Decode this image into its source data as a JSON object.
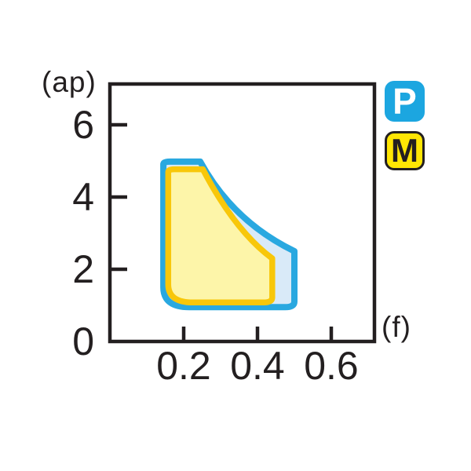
{
  "chart_data": {
    "type": "area",
    "title": "",
    "xlabel": "(f)",
    "ylabel": "(ap)",
    "x_ticks": [
      0.2,
      0.4,
      0.6
    ],
    "y_ticks": [
      6,
      4,
      2
    ],
    "x_tick_labels": [
      "0.2",
      "0.4",
      "0.6"
    ],
    "y_tick_labels": [
      "6",
      "4",
      "2",
      "0"
    ],
    "xlim": [
      0,
      0.72
    ],
    "ylim": [
      0,
      7.1
    ],
    "grid": false,
    "legend_position": "outside-top-right",
    "axis_color": "#231f20",
    "regions": [
      {
        "name": "P",
        "f_range": [
          0.15,
          0.5
        ],
        "ap_range": [
          1,
          5
        ],
        "fill": "#d9eaf8",
        "stroke": "#29a8e0",
        "stroke_width": 8,
        "path": [
          [
            "M",
            0.163,
            4.98
          ],
          [
            "L",
            0.245,
            4.98
          ],
          [
            "Q",
            0.333,
            3.33,
            0.5,
            2.5
          ],
          [
            "L",
            0.5,
            1.1
          ],
          [
            "Q",
            0.5,
            0.95,
            0.475,
            0.95
          ],
          [
            "L",
            0.215,
            0.95
          ],
          [
            "Q",
            0.145,
            0.95,
            0.145,
            1.5
          ],
          [
            "L",
            0.145,
            4.9
          ],
          [
            "Q",
            0.145,
            4.98,
            0.163,
            4.98
          ],
          [
            "Z"
          ]
        ]
      },
      {
        "name": "M",
        "f_range": [
          0.16,
          0.44
        ],
        "ap_range": [
          1.1,
          4.8
        ],
        "fill": "#fdf5a9",
        "stroke": "#f8c70a",
        "stroke_width": 7.5,
        "path": [
          [
            "M",
            0.175,
            4.77
          ],
          [
            "L",
            0.252,
            4.77
          ],
          [
            "Q",
            0.34,
            3.05,
            0.44,
            2.3
          ],
          [
            "L",
            0.44,
            1.22
          ],
          [
            "Q",
            0.44,
            1.08,
            0.417,
            1.08
          ],
          [
            "L",
            0.225,
            1.08
          ],
          [
            "Q",
            0.158,
            1.08,
            0.158,
            1.58
          ],
          [
            "L",
            0.158,
            4.69
          ],
          [
            "Q",
            0.158,
            4.77,
            0.175,
            4.77
          ],
          [
            "Z"
          ]
        ]
      }
    ]
  },
  "legend": [
    {
      "label": "P",
      "bg": "#1ca6e0",
      "fg": "#ffffff",
      "border": "none"
    },
    {
      "label": "M",
      "bg": "#ffe604",
      "fg": "#231f20",
      "border": "#231f20"
    }
  ]
}
